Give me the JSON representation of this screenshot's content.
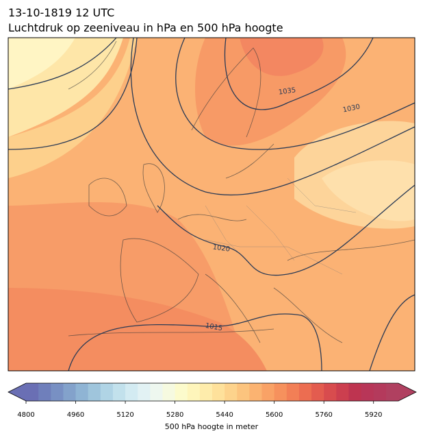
{
  "header": {
    "title": "13-10-1819 12 UTC",
    "subtitle": "Luchtdruk op zeeniveau in hPa en 500 hPa hoogte"
  },
  "map": {
    "contour_labels": [
      "1035",
      "1030",
      "1020",
      "1015"
    ]
  },
  "colorbar": {
    "label": "500 hPa hoogte in meter",
    "lim": [
      4800,
      6000
    ],
    "ticks": [
      4800,
      4960,
      5120,
      5280,
      5440,
      5600,
      5760,
      5920
    ],
    "colors": [
      "#6a6fb4",
      "#6f7fbb",
      "#7890c3",
      "#83a2cb",
      "#8fb4d4",
      "#9fc5dc",
      "#b0d4e5",
      "#c2e1ec",
      "#d3ebf2",
      "#e2f2f4",
      "#eef7ef",
      "#f6fae0",
      "#fcfbcc",
      "#fef5bb",
      "#feecab",
      "#fee19b",
      "#fdd38c",
      "#fcc47e",
      "#fbb371",
      "#f9a266",
      "#f6915d",
      "#f27f56",
      "#ec6d51",
      "#e35c4f",
      "#d84c4e",
      "#cc3f4f",
      "#be3450",
      "#b83658",
      "#b43a5c",
      "#b04060"
    ]
  }
}
